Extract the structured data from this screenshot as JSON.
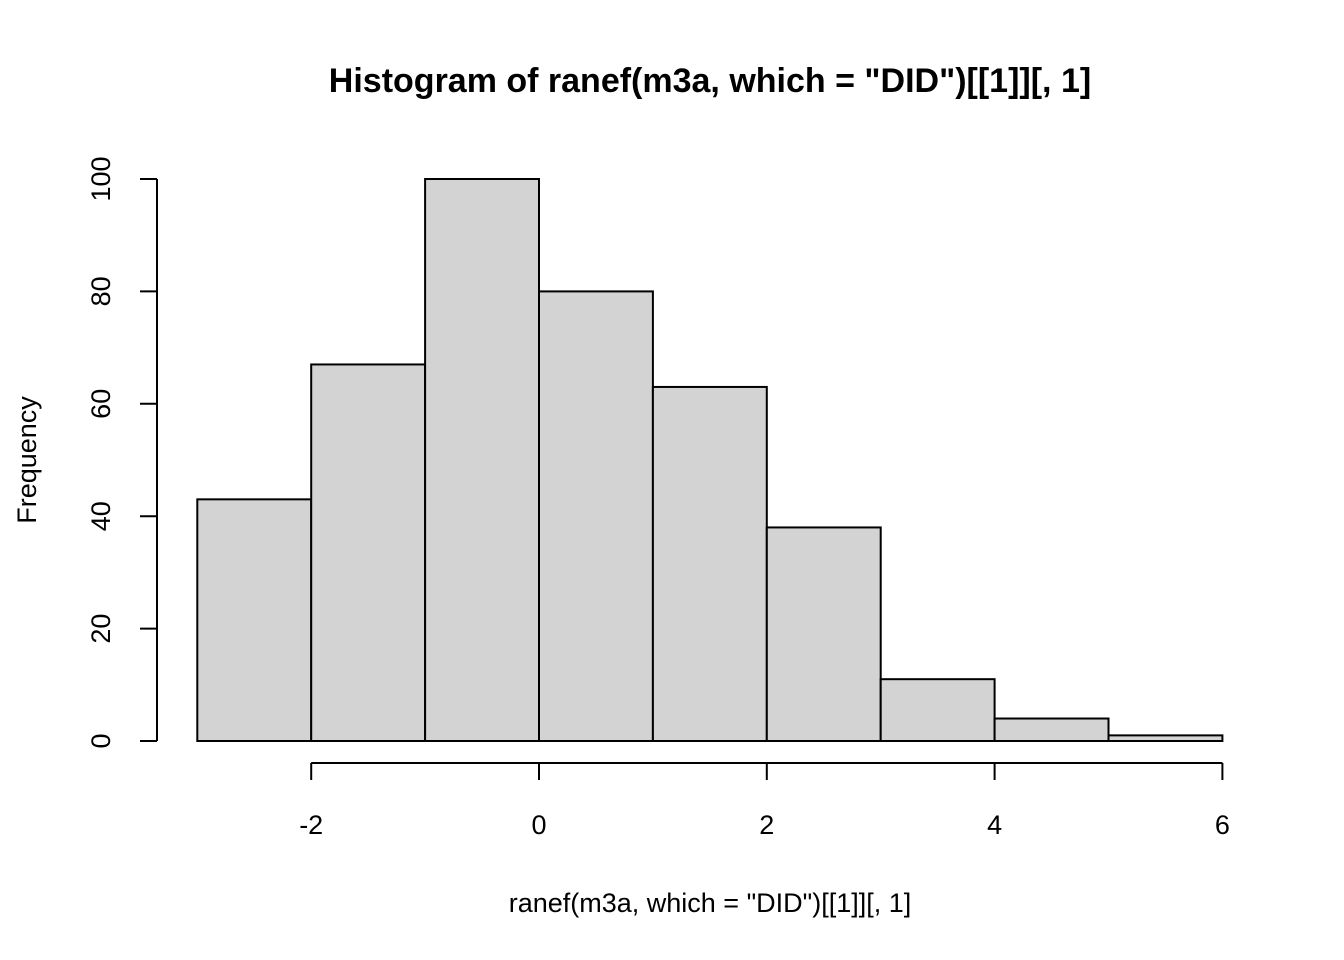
{
  "chart_data": {
    "type": "bar",
    "subtype": "histogram",
    "title": "Histogram of ranef(m3a, which = \"DID\")[[1]][, 1]",
    "xlabel": "ranef(m3a, which = \"DID\")[[1]][, 1]",
    "ylabel": "Frequency",
    "bins": [
      {
        "x0": -3,
        "x1": -2,
        "count": 43
      },
      {
        "x0": -2,
        "x1": -1,
        "count": 67
      },
      {
        "x0": -1,
        "x1": 0,
        "count": 100
      },
      {
        "x0": 0,
        "x1": 1,
        "count": 80
      },
      {
        "x0": 1,
        "x1": 2,
        "count": 63
      },
      {
        "x0": 2,
        "x1": 3,
        "count": 38
      },
      {
        "x0": 3,
        "x1": 4,
        "count": 11
      },
      {
        "x0": 4,
        "x1": 5,
        "count": 4
      },
      {
        "x0": 5,
        "x1": 6,
        "count": 1
      }
    ],
    "x_ticks": [
      "-2",
      "0",
      "2",
      "4",
      "6"
    ],
    "y_ticks": [
      "0",
      "20",
      "40",
      "60",
      "80",
      "100"
    ],
    "xlim": [
      -3,
      6
    ],
    "ylim": [
      0,
      100
    ],
    "bar_fill": "#d3d3d3",
    "bar_stroke": "#000000",
    "grid": false,
    "legend": "none"
  }
}
